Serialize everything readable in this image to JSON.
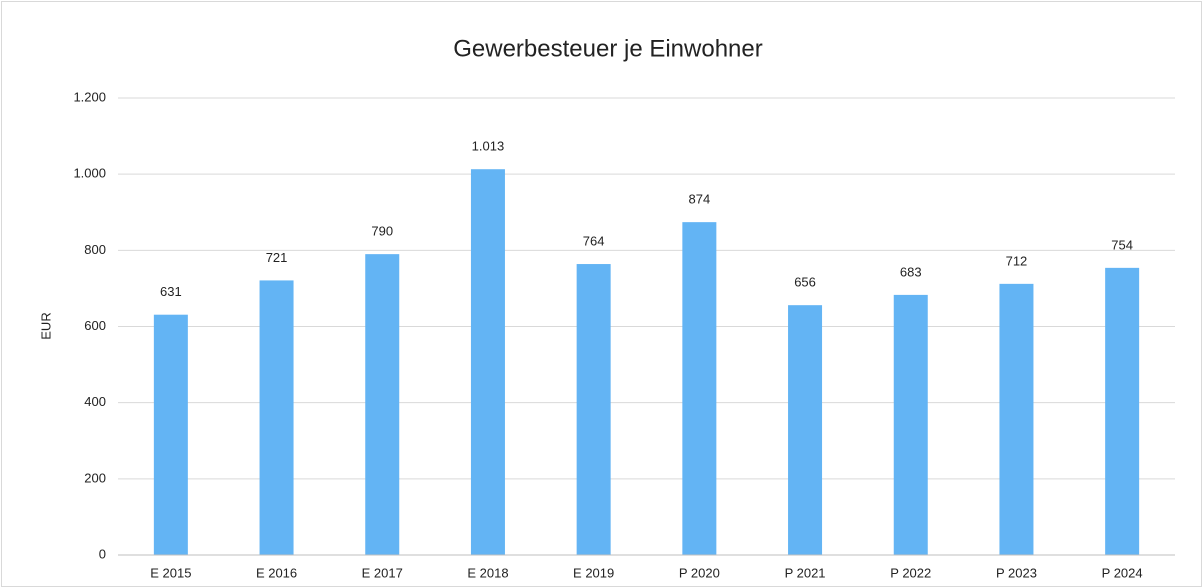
{
  "chart_data": {
    "type": "bar",
    "title": "Gewerbesteuer je Einwohner",
    "y_label": "EUR",
    "categories": [
      "E 2015",
      "E 2016",
      "E 2017",
      "E 2018",
      "E 2019",
      "P 2020",
      "P 2021",
      "P 2022",
      "P 2023",
      "P 2024"
    ],
    "values": [
      631,
      721,
      790,
      1013,
      764,
      874,
      656,
      683,
      712,
      754
    ],
    "value_labels": [
      "631",
      "721",
      "790",
      "1.013",
      "764",
      "874",
      "656",
      "683",
      "712",
      "754"
    ],
    "color": "#63b4f4",
    "ylim": [
      0,
      1200
    ],
    "yticks": [
      0,
      200,
      400,
      600,
      800,
      {
        "value": 1000,
        "label": "1.000"
      },
      {
        "value": 1200,
        "label": "1.200"
      }
    ],
    "grid": true
  }
}
